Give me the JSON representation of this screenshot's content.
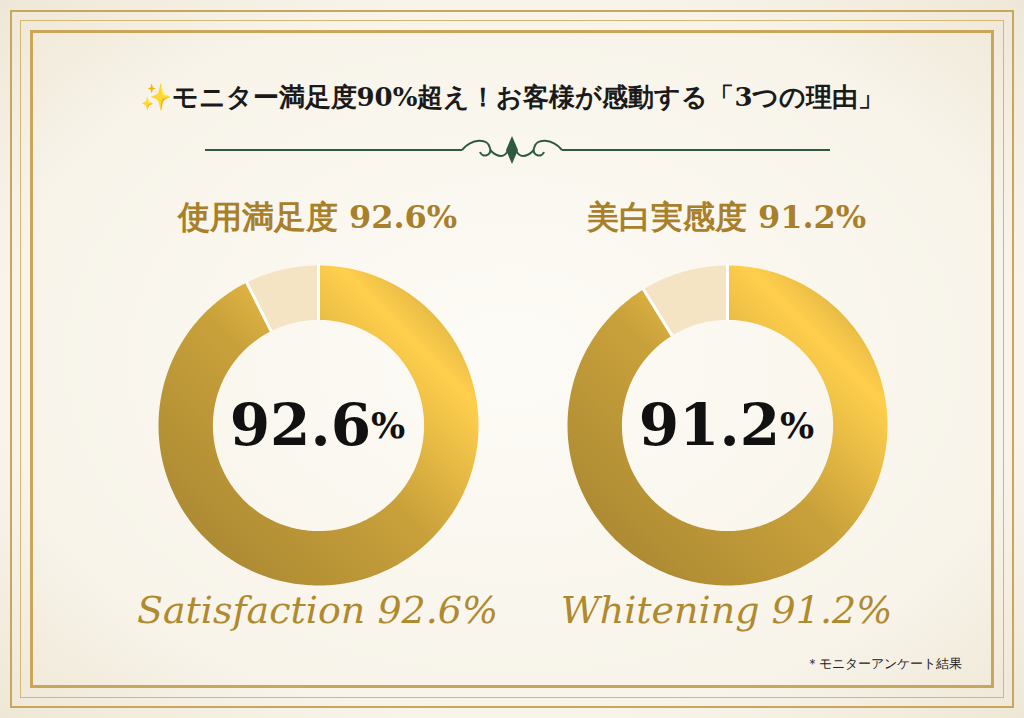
{
  "title": "✨モニター満足度90%超え！お客様が感動する「3つの理由」",
  "note": "＊モニターアンケート結果",
  "chart_data": [
    {
      "type": "donut",
      "title": "使用満足度 92.6%",
      "subtitle": "Satisfaction 92.6%",
      "annotations": [
        "92.6%"
      ],
      "values": [
        92.6,
        7.4
      ],
      "colors": [
        "#c9a13b",
        "#f5e4c3"
      ]
    },
    {
      "type": "donut",
      "title": "美白実感度 91.2%",
      "subtitle": "Whitening 91.2%",
      "annotations": [
        "91.2%"
      ],
      "values": [
        91.2,
        8.8
      ],
      "colors": [
        "#c9a13b",
        "#f5e4c3"
      ]
    }
  ]
}
